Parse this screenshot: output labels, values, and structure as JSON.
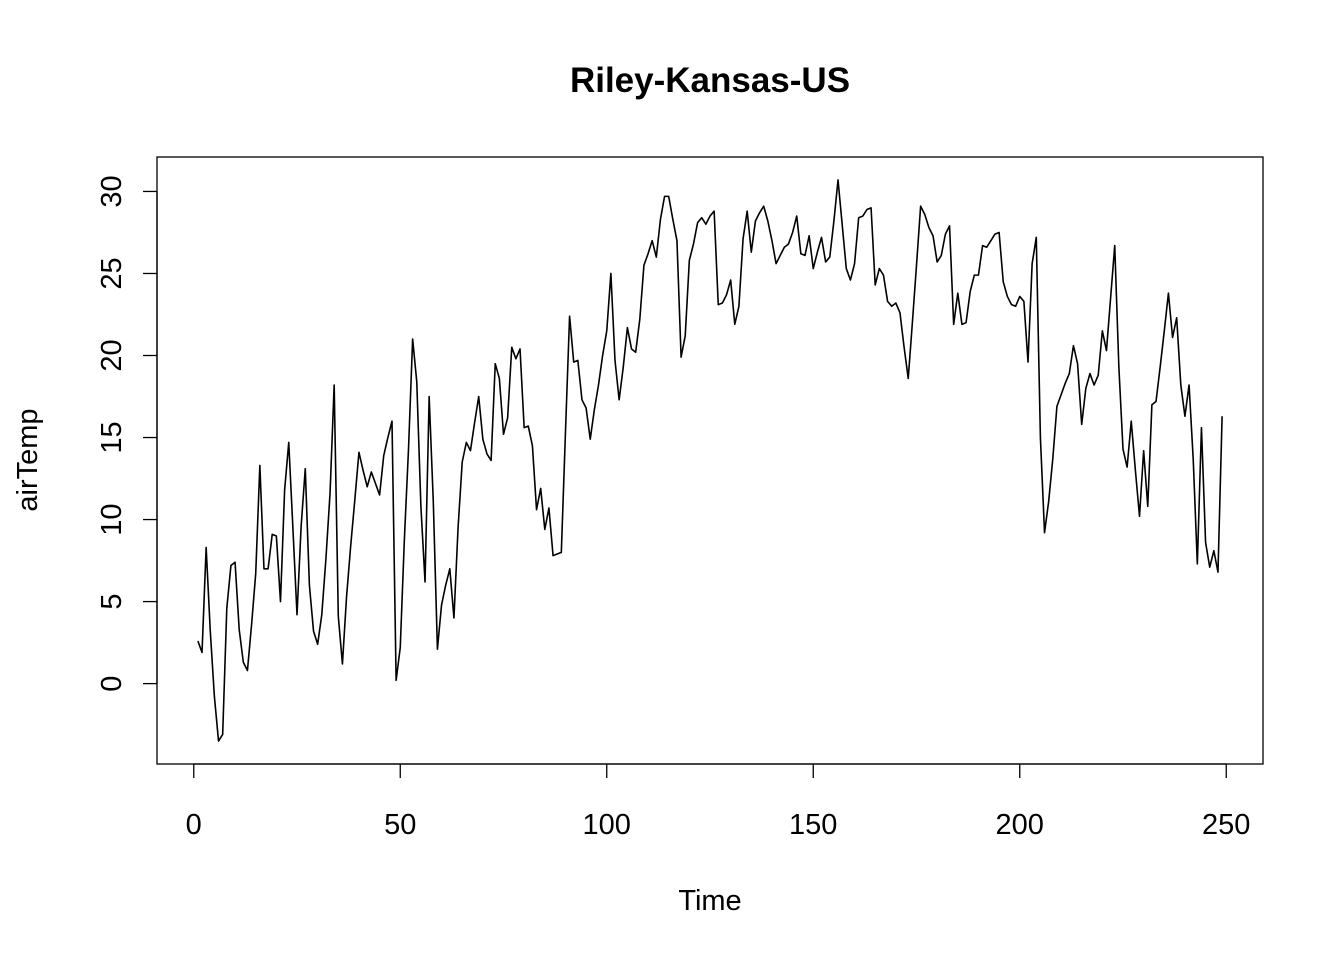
{
  "chart_data": {
    "type": "line",
    "title": "Riley-Kansas-US",
    "xlabel": "Time",
    "ylabel": "airTemp",
    "xlim": [
      -8.9,
      258.9
    ],
    "ylim": [
      -4.9,
      32.1
    ],
    "grid": false,
    "x_ticks": [
      0,
      50,
      100,
      150,
      200,
      250
    ],
    "y_ticks": [
      0,
      5,
      10,
      15,
      20,
      25,
      30
    ],
    "series": [
      {
        "color": "#000000",
        "x_start": 1,
        "x_step": 1,
        "values": [
          2.6,
          1.9,
          8.3,
          3.2,
          -0.8,
          -3.5,
          -3.1,
          4.6,
          7.2,
          7.4,
          3.3,
          1.3,
          0.8,
          3.6,
          6.7,
          13.3,
          7.0,
          7.0,
          9.1,
          9.0,
          5.0,
          11.8,
          14.7,
          9.5,
          4.2,
          9.6,
          13.1,
          6.0,
          3.2,
          2.4,
          4.2,
          7.6,
          11.6,
          18.2,
          4.1,
          1.2,
          5.3,
          8.4,
          11.2,
          14.1,
          13.0,
          12.0,
          12.9,
          12.2,
          11.5,
          13.9,
          15.0,
          16.0,
          0.2,
          2.2,
          8.8,
          14.3,
          21.0,
          18.4,
          10.8,
          6.2,
          17.5,
          11.1,
          2.1,
          4.8,
          6.0,
          7.0,
          4.0,
          9.5,
          13.5,
          14.7,
          14.2,
          15.9,
          17.5,
          14.9,
          14.0,
          13.6,
          19.5,
          18.6,
          15.2,
          16.2,
          20.5,
          19.8,
          20.4,
          15.6,
          15.7,
          14.5,
          10.6,
          11.9,
          9.4,
          10.7,
          7.8,
          7.9,
          8.0,
          15.3,
          22.4,
          19.6,
          19.7,
          17.3,
          16.8,
          14.9,
          16.7,
          18.2,
          20.0,
          21.5,
          25.0,
          19.7,
          17.3,
          19.3,
          21.7,
          20.4,
          20.2,
          22.2,
          25.5,
          26.2,
          27.0,
          26.0,
          28.3,
          29.7,
          29.7,
          28.3,
          27.0,
          19.9,
          21.2,
          25.8,
          26.8,
          28.1,
          28.4,
          28.0,
          28.5,
          28.8,
          23.1,
          23.2,
          23.7,
          24.6,
          21.9,
          23.0,
          27.1,
          28.8,
          26.3,
          28.2,
          28.7,
          29.1,
          28.2,
          27.0,
          25.6,
          26.1,
          26.6,
          26.8,
          27.5,
          28.5,
          26.2,
          26.1,
          27.3,
          25.3,
          26.3,
          27.2,
          25.7,
          26.0,
          28.2,
          30.7,
          28.0,
          25.3,
          24.6,
          25.6,
          28.4,
          28.5,
          28.9,
          29.0,
          24.3,
          25.3,
          24.9,
          23.3,
          23.0,
          23.2,
          22.6,
          20.5,
          18.6,
          22.0,
          25.5,
          29.1,
          28.6,
          27.8,
          27.3,
          25.7,
          26.1,
          27.4,
          27.9,
          21.9,
          23.8,
          21.9,
          22.0,
          23.9,
          24.9,
          24.9,
          26.7,
          26.6,
          27.0,
          27.4,
          27.5,
          24.5,
          23.6,
          23.1,
          23.0,
          23.6,
          23.3,
          19.6,
          25.6,
          27.2,
          15.0,
          9.2,
          11.1,
          13.7,
          16.9,
          17.6,
          18.3,
          18.9,
          20.6,
          19.5,
          15.8,
          18.0,
          18.9,
          18.2,
          18.8,
          21.5,
          20.3,
          23.5,
          26.7,
          19.3,
          14.3,
          13.2,
          16.0,
          13.0,
          10.2,
          14.2,
          10.8,
          17.0,
          17.2,
          19.3,
          21.5,
          23.8,
          21.1,
          22.3,
          18.2,
          16.3,
          18.2,
          13.7,
          7.3,
          15.6,
          8.6,
          7.1,
          8.1,
          6.8,
          16.3
        ]
      }
    ]
  }
}
